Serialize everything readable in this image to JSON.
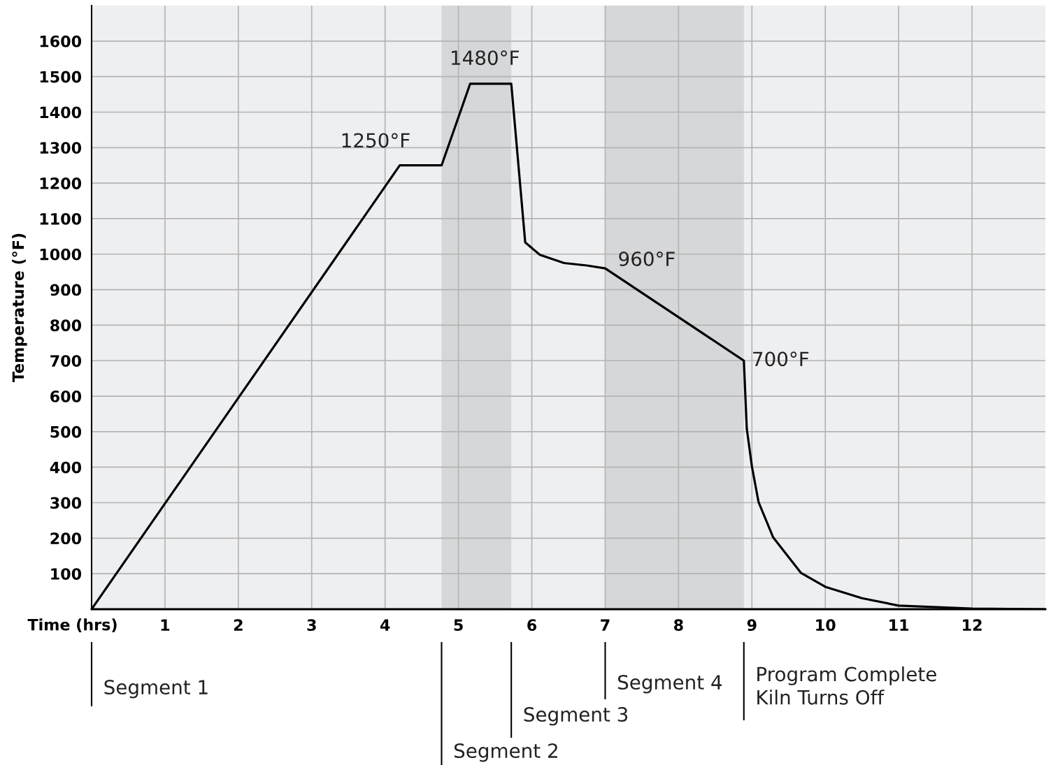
{
  "chart_data": {
    "type": "line",
    "xlabel": "Time (hrs)",
    "ylabel": "Temperature (°F)",
    "x": [
      0,
      4.2,
      4.77,
      5.16,
      5.72,
      5.91,
      6.11,
      6.44,
      6.75,
      7.0,
      8.89,
      8.93,
      9.0,
      9.09,
      9.29,
      9.67,
      10.0,
      10.5,
      11.0,
      12.0,
      13.0
    ],
    "series": [
      {
        "color": "#000000",
        "values": [
          0,
          1250,
          1250,
          1480,
          1480,
          1033,
          998,
          975,
          968,
          960,
          700,
          508,
          402,
          302,
          202,
          102,
          63,
          31,
          10,
          2,
          0
        ]
      }
    ],
    "xlim": [
      0,
      13
    ],
    "ylim": [
      0,
      1700
    ],
    "xticks": [
      1,
      2,
      3,
      4,
      5,
      6,
      7,
      8,
      9,
      10,
      11,
      12
    ],
    "yticks": [
      100,
      200,
      300,
      400,
      500,
      600,
      700,
      800,
      900,
      1000,
      1100,
      1200,
      1300,
      1400,
      1500,
      1600
    ],
    "grid": true,
    "marker": "none",
    "line_style": "solid",
    "bands": [
      {
        "axis": "x",
        "from": 4.77,
        "to": 5.72,
        "color": "#d6d7d9"
      },
      {
        "axis": "x",
        "from": 7.0,
        "to": 8.89,
        "color": "#d6d7d9"
      }
    ],
    "annotations": [
      {
        "text": "1250°F",
        "x": 4.2,
        "y": 1250
      },
      {
        "text": "1480°F",
        "x": 5.16,
        "y": 1480
      },
      {
        "text": "960°F",
        "x": 7.0,
        "y": 960
      },
      {
        "text": "700°F",
        "x": 8.89,
        "y": 700
      },
      "Segment 1",
      "Segment 2",
      "Segment 3",
      "Segment 4",
      "Program Complete\nKiln Turns Off"
    ]
  }
}
